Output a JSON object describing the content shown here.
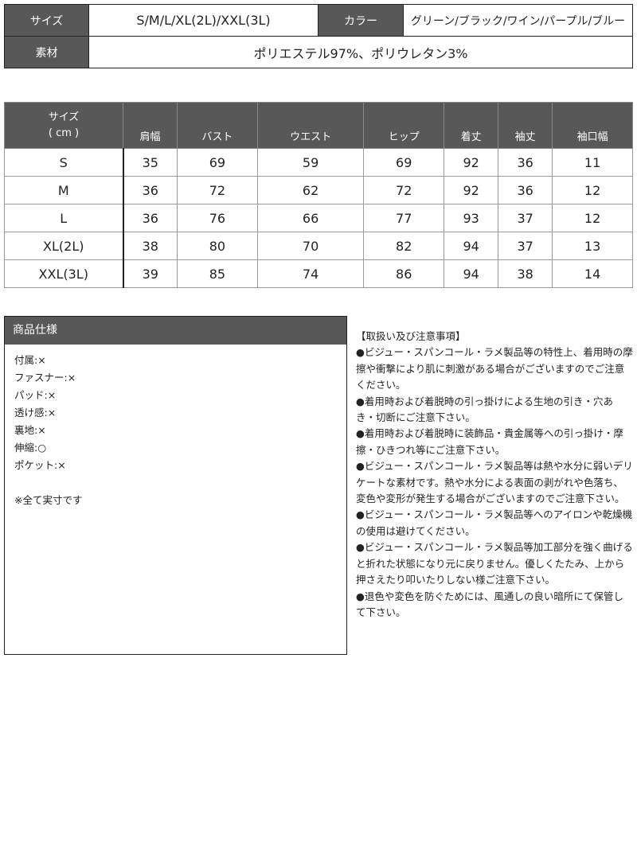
{
  "info": {
    "size_label": "サイズ",
    "size_value": "S/M/L/XL(2L)/XXL(3L)",
    "color_label": "カラー",
    "color_value": "グリーン/ブラック/ワイン/パープル/ブルー",
    "material_label": "素材",
    "material_value": "ポリエステル97%、ポリウレタン3%"
  },
  "size_table": {
    "corner_line1": "サイズ",
    "corner_line2": "( cm )",
    "headers": [
      "肩幅",
      "バスト",
      "ウエスト",
      "ヒップ",
      "着丈",
      "袖丈",
      "袖口幅"
    ],
    "rows": [
      {
        "size": "S",
        "values": [
          "35",
          "69",
          "59",
          "69",
          "92",
          "36",
          "11"
        ]
      },
      {
        "size": "M",
        "values": [
          "36",
          "72",
          "62",
          "72",
          "92",
          "36",
          "12"
        ]
      },
      {
        "size": "L",
        "values": [
          "36",
          "76",
          "66",
          "77",
          "93",
          "37",
          "12"
        ]
      },
      {
        "size": "XL(2L)",
        "values": [
          "38",
          "80",
          "70",
          "82",
          "94",
          "37",
          "13"
        ]
      },
      {
        "size": "XXL(3L)",
        "values": [
          "39",
          "85",
          "74",
          "86",
          "94",
          "38",
          "14"
        ]
      }
    ]
  },
  "spec": {
    "title": "商品仕様",
    "items": [
      "付属:×",
      "ファスナー:×",
      "パッド:×",
      "透け感:×",
      "裏地:×",
      "伸縮:○",
      "ポケット:×"
    ],
    "note": "※全て実寸です"
  },
  "notes": {
    "title": "【取扱い及び注意事項】",
    "items": [
      "●ビジュー・スパンコール・ラメ製品等の特性上、着用時の摩擦や衝撃により肌に刺激がある場合がございますのでご注意ください。",
      "●着用時および着脱時の引っ掛けによる生地の引き・穴あき・切断にご注意下さい。",
      "●着用時および着脱時に装飾品・貴金属等への引っ掛け・摩擦・ひきつれ等にご注意下さい。",
      "●ビジュー・スパンコール・ラメ製品等は熱や水分に弱いデリケートな素材です。熱や水分による表面の剥がれや色落ち、変色や変形が発生する場合がございますのでご注意下さい。",
      "●ビジュー・スパンコール・ラメ製品等へのアイロンや乾燥機の使用は避けてください。",
      "●ビジュー・スパンコール・ラメ製品等加工部分を強く曲げると折れた状態になり元に戻りません。優しくたたみ、上から押さえたり叩いたりしない様ご注意下さい。",
      "●退色や変色を防ぐためには、風通しの良い暗所にて保管して下さい。"
    ]
  }
}
